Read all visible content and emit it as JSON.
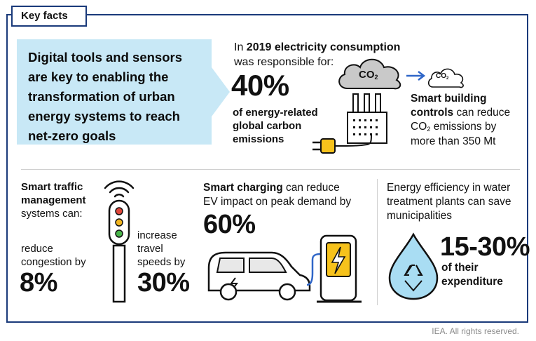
{
  "header": {
    "tab_label": "Key facts"
  },
  "callout": {
    "lines": [
      "Digital tools and sensors",
      "are key to enabling the",
      "transformation of urban",
      "energy systems to reach",
      "net-zero goals"
    ]
  },
  "electricity": {
    "intro_prefix": "In ",
    "intro_bold": "2019 electricity consumption",
    "intro_line2": "was responsible for:",
    "percent": "40%",
    "desc_lines": [
      "of energy-related",
      "global carbon",
      "emissions"
    ],
    "cloud_label": "CO",
    "cloud_small_label": "CO",
    "co2_sub": "2"
  },
  "smart_building": {
    "line1_bold": "Smart building",
    "line2_bold": "controls",
    "line2_rest": " can reduce",
    "line3_prefix": "CO",
    "line3_sub": "2",
    "line3_rest": " emissions by",
    "line4": "more than 350 Mt"
  },
  "traffic": {
    "line1": "Smart traffic",
    "line2": "management",
    "line3": "systems can:",
    "reduce_line1": "reduce",
    "reduce_line2": "congestion by",
    "reduce_value": "8%",
    "increase_line1": "increase",
    "increase_line2": "travel",
    "increase_line3": "speeds by",
    "increase_value": "30%"
  },
  "charging": {
    "line1_bold": "Smart charging",
    "line1_rest": " can reduce",
    "line2": "EV impact on peak demand by",
    "value": "60%"
  },
  "water": {
    "line1": "Energy efficiency in water",
    "line2": "treatment plants can save",
    "line3": "municipalities",
    "value": "15-30%",
    "desc1": "of their",
    "desc2": "expenditure"
  },
  "footer": {
    "copyright": "IEA. All rights reserved."
  },
  "colors": {
    "frame": "#1a3a7a",
    "callout_bg": "#c8e8f6",
    "plug_yellow": "#f6c21c",
    "traffic_red": "#e0473a",
    "traffic_yellow": "#f2b51f",
    "traffic_green": "#49b54a",
    "water_drop": "#a9ddf3",
    "cable_blue": "#2f66c8"
  },
  "icons": [
    "cloud-icon",
    "arrow-right-icon",
    "factory-icon",
    "plug-icon",
    "signal-icon",
    "traffic-light-icon",
    "ev-car-icon",
    "charging-station-icon",
    "water-drop-icon",
    "recycle-icon"
  ]
}
